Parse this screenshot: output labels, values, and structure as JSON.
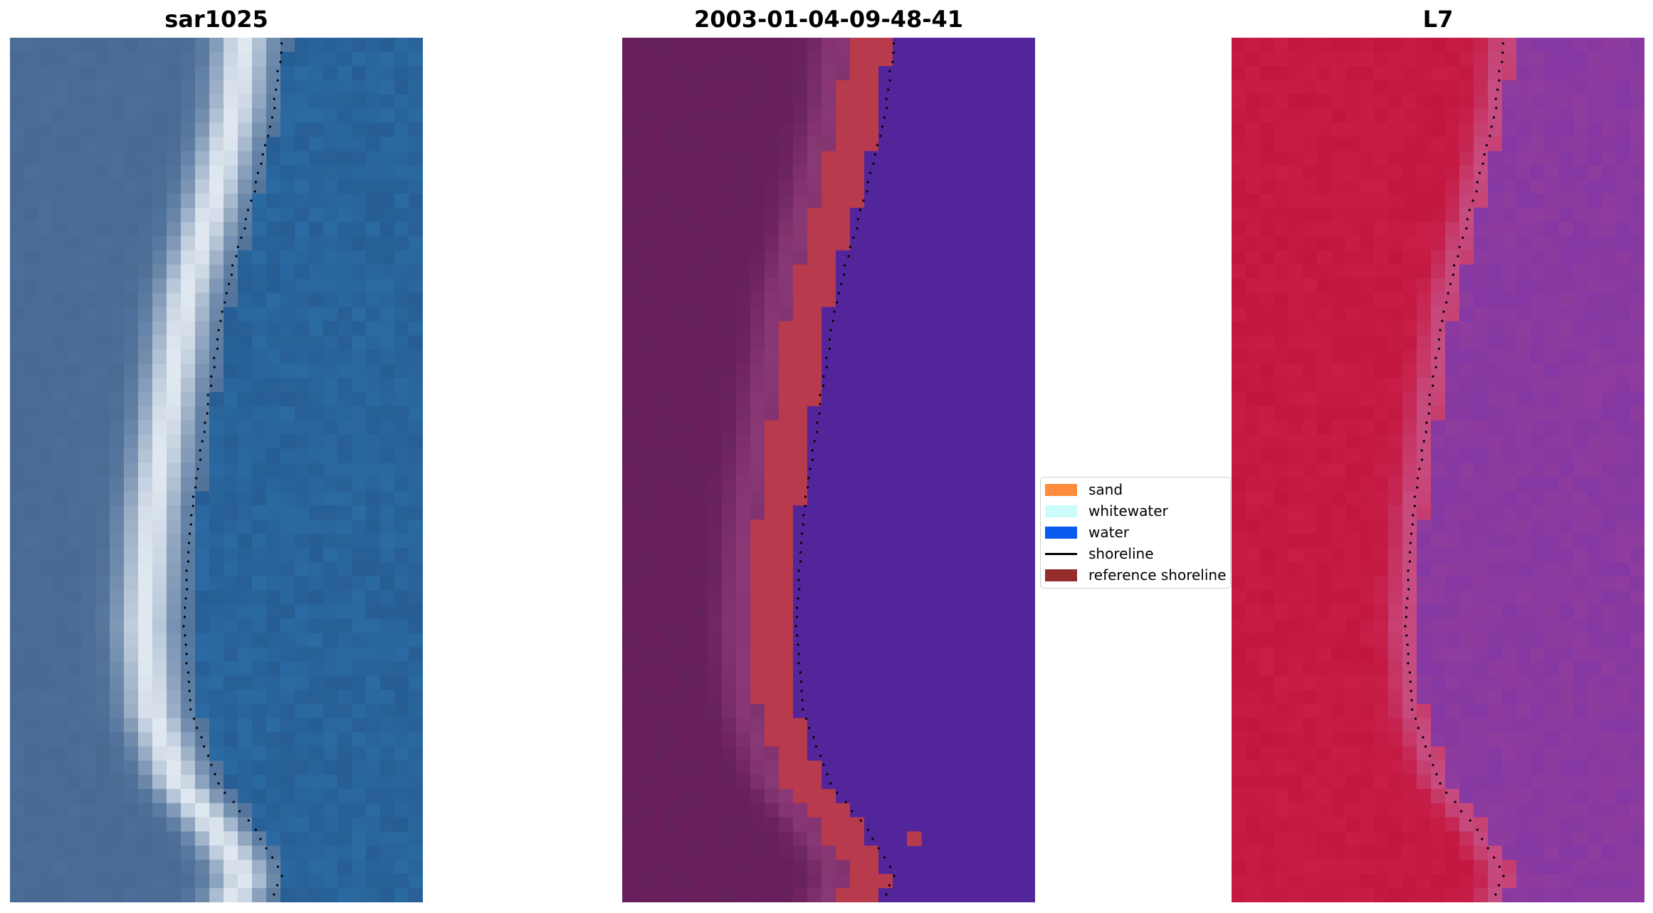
{
  "panels": [
    {
      "id": "rgb",
      "title": "sar1025"
    },
    {
      "id": "classified",
      "title": "2003-01-04-09-48-41"
    },
    {
      "id": "index",
      "title": "L7"
    }
  ],
  "legend": {
    "items": [
      {
        "label": "sand",
        "kind": "patch",
        "color": "#ff8c3c"
      },
      {
        "label": "whitewater",
        "kind": "patch",
        "color": "#ccfcfc"
      },
      {
        "label": "water",
        "kind": "patch",
        "color": "#0a5af0"
      },
      {
        "label": "shoreline",
        "kind": "line",
        "color": "#000000"
      },
      {
        "label": "reference shoreline",
        "kind": "patch",
        "color": "#962d2d"
      }
    ]
  },
  "colors": {
    "rgb_water": "#2b6aa3",
    "rgb_land": "#4a6e99",
    "rgb_whitewater": "#e8eef5",
    "class_land": "#6a1f5e",
    "class_sand": "#b83a4d",
    "class_water": "#53259a",
    "index_land": "#c3163f",
    "index_water": "#8e3c9e",
    "shoreline_dots": "#000000"
  }
}
